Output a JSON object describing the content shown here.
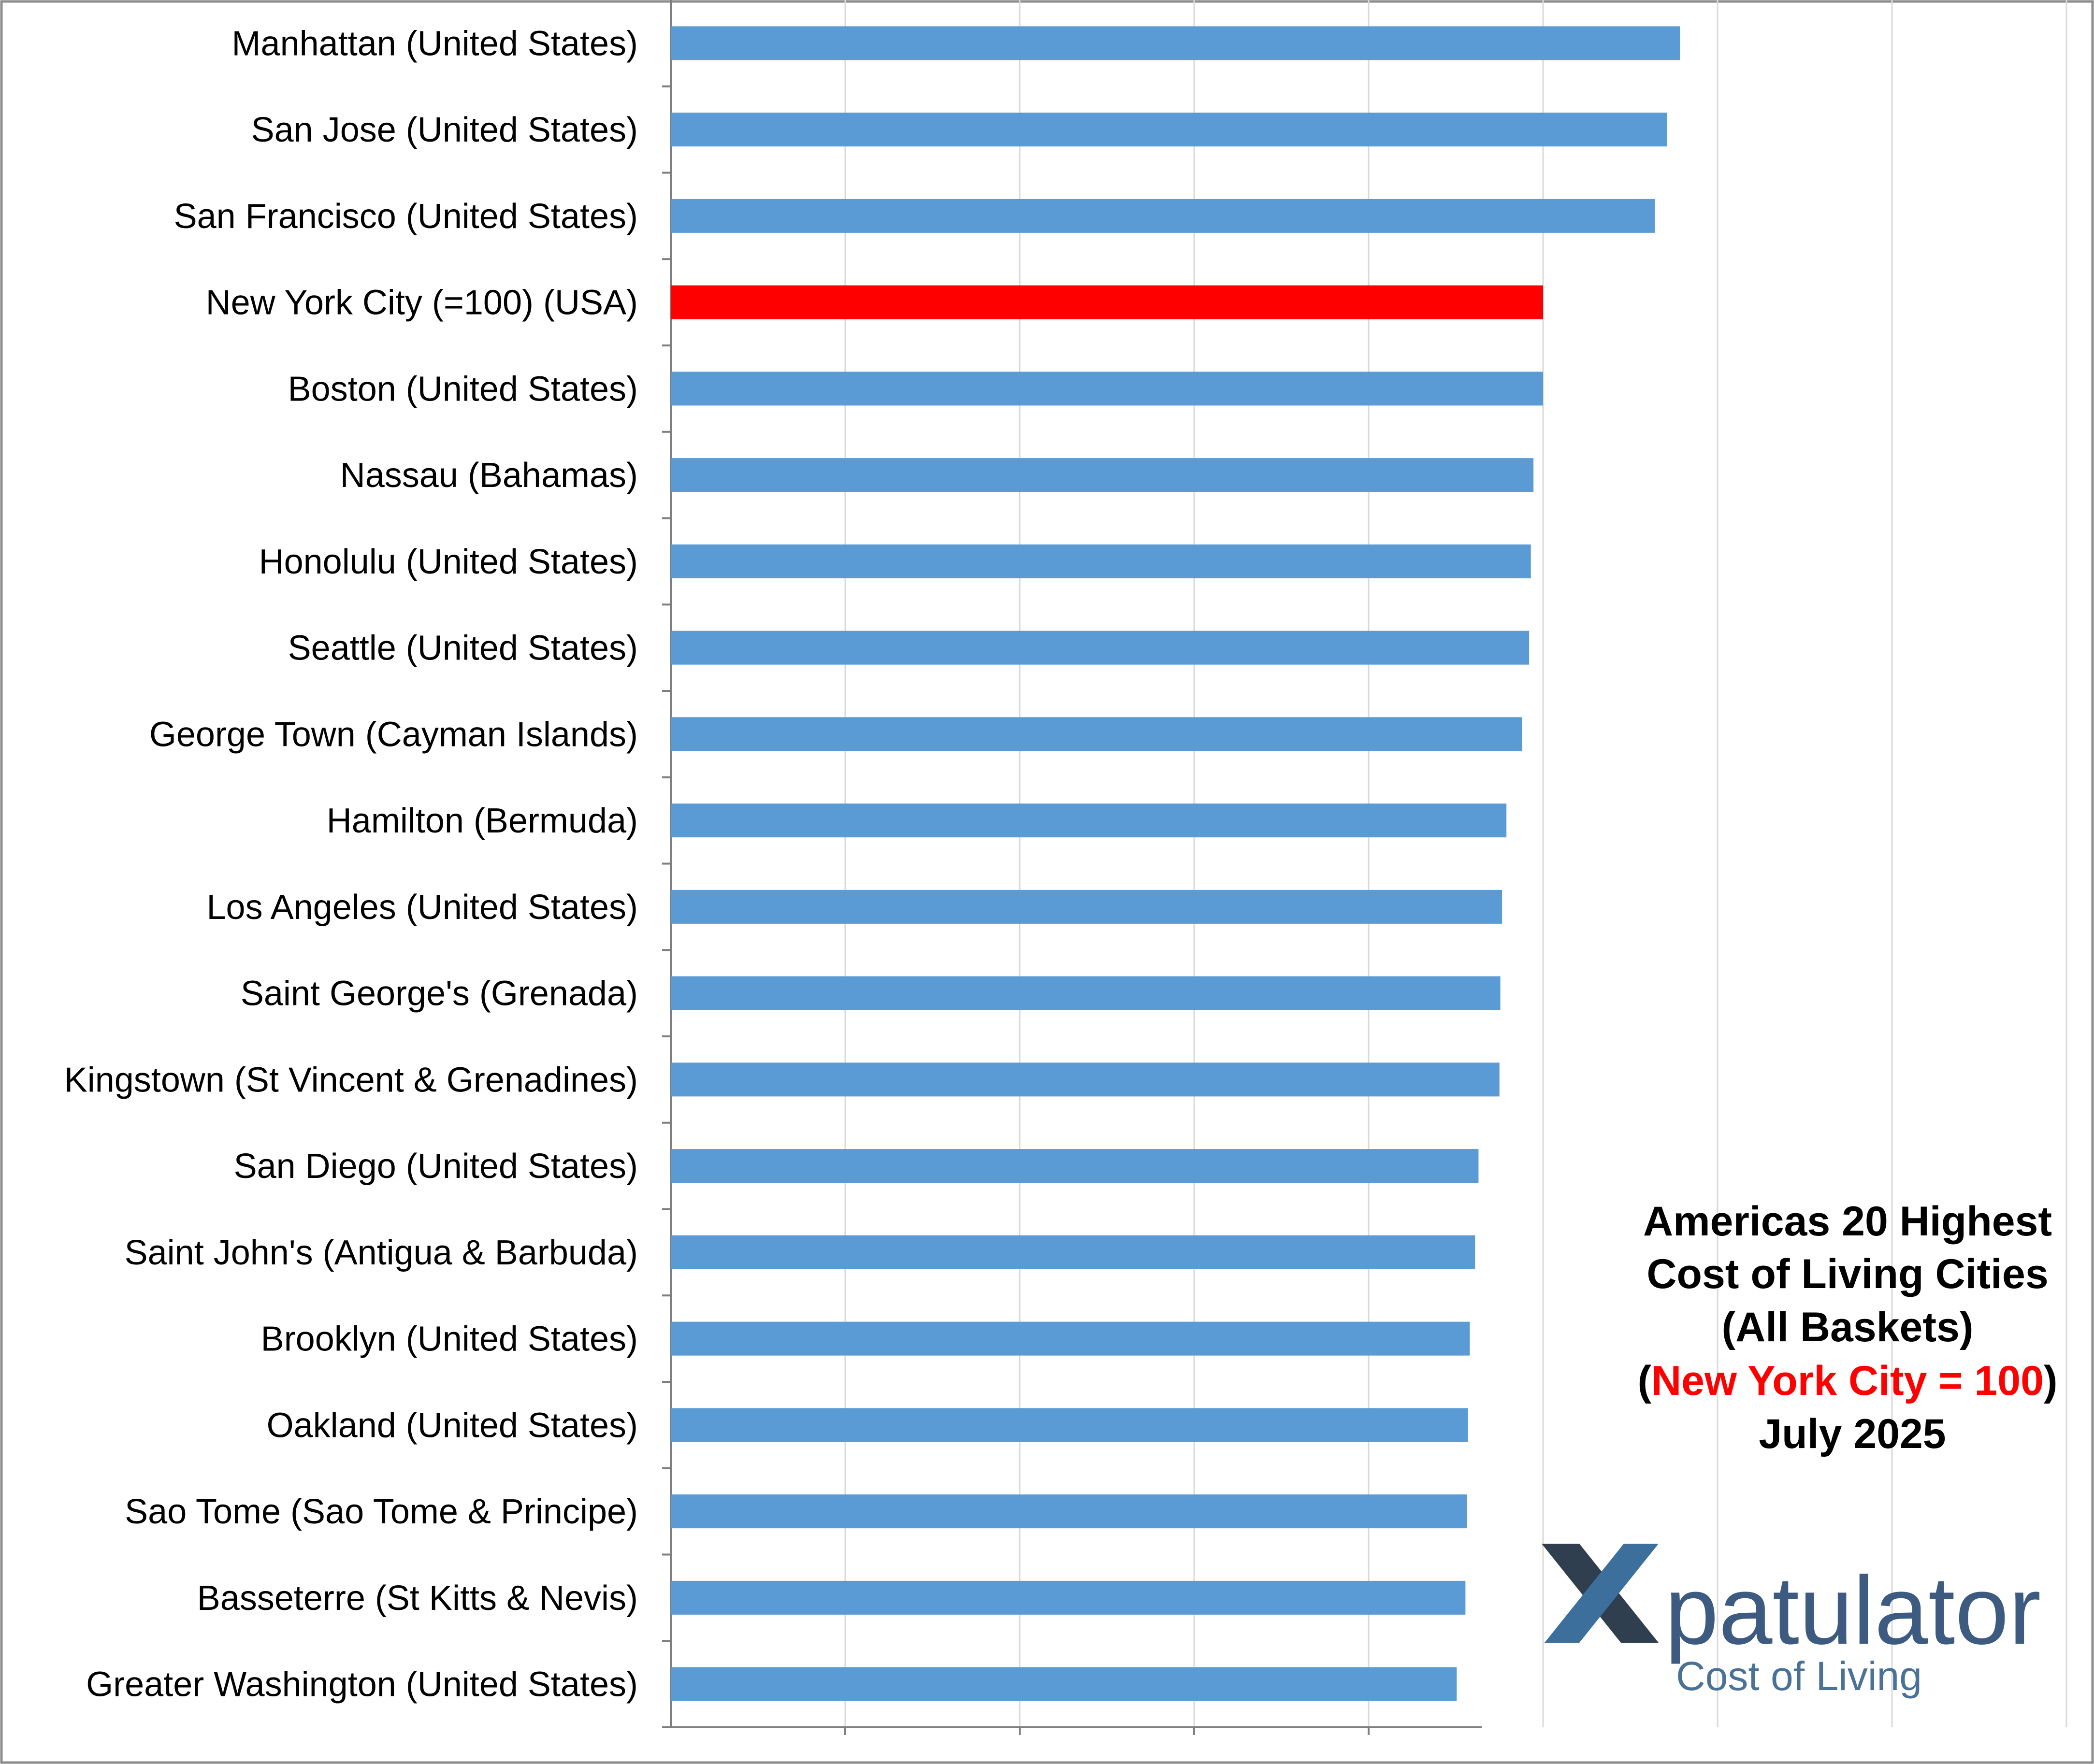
{
  "chart_data": {
    "type": "bar",
    "orientation": "horizontal",
    "categories": [
      "Manhattan (United States)",
      "San Jose (United States)",
      "San Francisco (United States)",
      "New York City (=100) (USA)",
      "Boston (United States)",
      "Nassau (Bahamas)",
      "Honolulu (United States)",
      "Seattle (United States)",
      "George Town (Cayman Islands)",
      "Hamilton (Bermuda)",
      "Los Angeles (United States)",
      "Saint George's (Grenada)",
      "Kingstown (St Vincent & Grenadines)",
      "San Diego (United States)",
      "Saint John's (Antigua & Barbuda)",
      "Brooklyn (United States)",
      "Oakland (United States)",
      "Sao Tome (Sao Tome & Principe)",
      "Basseterre (St Kitts & Nevis)",
      "Greater Washington (United States)"
    ],
    "values": [
      115.7,
      114.2,
      112.8,
      100,
      100,
      98.9,
      98.6,
      98.4,
      97.6,
      95.8,
      95.3,
      95.1,
      95.0,
      92.6,
      92.2,
      91.6,
      91.4,
      91.3,
      91.1,
      90.1
    ],
    "highlight_index": 3,
    "bar_color": "#5b9bd5",
    "highlight_color": "#ff0000",
    "xlim": [
      0,
      160
    ],
    "grid": true,
    "title_lines": [
      "Americas 20 Highest",
      "Cost of Living Cities",
      "(All Baskets)"
    ],
    "title_highlight": {
      "open": "(",
      "text": "New York City = 100",
      "close": ")"
    },
    "title_date": "July 2025"
  },
  "logo": {
    "word": "patulator",
    "subtitle": "Cost of Living"
  }
}
